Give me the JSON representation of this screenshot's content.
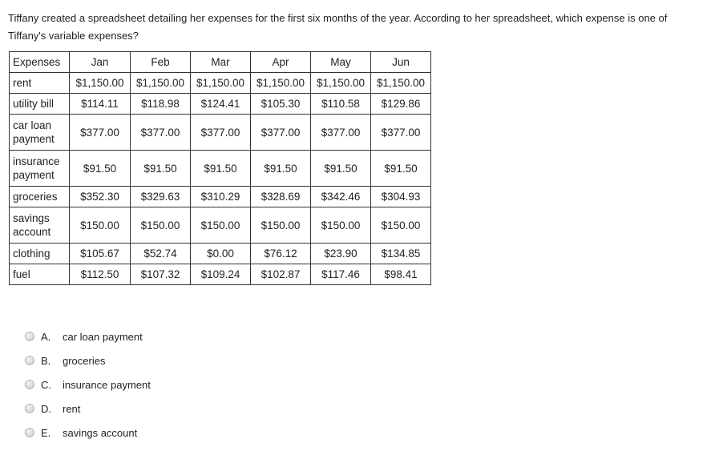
{
  "question": "Tiffany created a spreadsheet detailing her expenses for the first six months of the year. According to her spreadsheet, which expense is one of Tiffany's variable expenses?",
  "table": {
    "headers": [
      "Expenses",
      "Jan",
      "Feb",
      "Mar",
      "Apr",
      "May",
      "Jun"
    ],
    "rows": [
      {
        "label": "rent",
        "values": [
          "$1,150.00",
          "$1,150.00",
          "$1,150.00",
          "$1,150.00",
          "$1,150.00",
          "$1,150.00"
        ]
      },
      {
        "label": "utility bill",
        "values": [
          "$114.11",
          "$118.98",
          "$124.41",
          "$105.30",
          "$110.58",
          "$129.86"
        ]
      },
      {
        "label": "car loan payment",
        "values": [
          "$377.00",
          "$377.00",
          "$377.00",
          "$377.00",
          "$377.00",
          "$377.00"
        ]
      },
      {
        "label": "insurance payment",
        "values": [
          "$91.50",
          "$91.50",
          "$91.50",
          "$91.50",
          "$91.50",
          "$91.50"
        ]
      },
      {
        "label": "groceries",
        "values": [
          "$352.30",
          "$329.63",
          "$310.29",
          "$328.69",
          "$342.46",
          "$304.93"
        ]
      },
      {
        "label": "savings account",
        "values": [
          "$150.00",
          "$150.00",
          "$150.00",
          "$150.00",
          "$150.00",
          "$150.00"
        ]
      },
      {
        "label": "clothing",
        "values": [
          "$105.67",
          "$52.74",
          "$0.00",
          "$76.12",
          "$23.90",
          "$134.85"
        ]
      },
      {
        "label": "fuel",
        "values": [
          "$112.50",
          "$107.32",
          "$109.24",
          "$102.87",
          "$117.46",
          "$98.41"
        ]
      }
    ]
  },
  "options": [
    {
      "letter": "A.",
      "text": "car loan payment"
    },
    {
      "letter": "B.",
      "text": "groceries"
    },
    {
      "letter": "C.",
      "text": "insurance payment"
    },
    {
      "letter": "D.",
      "text": "rent"
    },
    {
      "letter": "E.",
      "text": "savings account"
    }
  ]
}
